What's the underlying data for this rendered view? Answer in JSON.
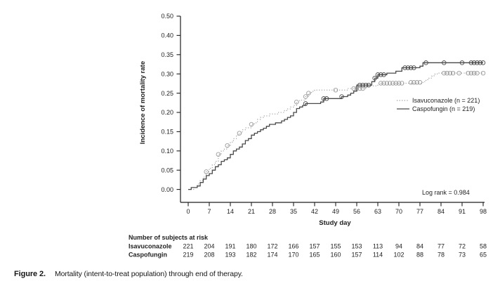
{
  "chart_data": {
    "type": "line",
    "subtype": "step-cumulative-incidence (Kaplan-Meier style)",
    "title": "",
    "xlabel": "Study day",
    "ylabel": "Incidence of mortality rate",
    "x_ticks": [
      0,
      7,
      14,
      21,
      28,
      35,
      42,
      49,
      56,
      63,
      70,
      77,
      84,
      91,
      98
    ],
    "y_tick_labels": [
      "0.00",
      "0.05",
      "0.10",
      "0.15",
      "0.20",
      "0.25",
      "0.30",
      "0.35",
      "0.40",
      "0.50"
    ],
    "xlim": [
      0,
      98
    ],
    "ylim_displayed": [
      0.0,
      0.5
    ],
    "grid": false,
    "legend_position": "right-middle",
    "annotation": "Log rank = 0.984",
    "legend": [
      {
        "label": "Isavuconazole (n = 221)",
        "style": "dotted",
        "color": "#9b9b9b"
      },
      {
        "label": "Caspofungin (n = 219)",
        "style": "solid",
        "color": "#4a4a4a"
      }
    ],
    "series": [
      {
        "name": "Isavuconazole (n = 221)",
        "short_name": "Isavuconazole",
        "n": 221,
        "line_style": "dotted",
        "color": "#9b9b9b",
        "steps": [
          [
            0,
            0
          ],
          [
            2,
            0.005
          ],
          [
            3,
            0.014
          ],
          [
            4,
            0.023
          ],
          [
            5,
            0.032
          ],
          [
            6,
            0.046
          ],
          [
            7,
            0.055
          ],
          [
            8,
            0.064
          ],
          [
            9,
            0.073
          ],
          [
            10,
            0.091
          ],
          [
            11,
            0.1
          ],
          [
            12,
            0.105
          ],
          [
            13,
            0.114
          ],
          [
            14,
            0.123
          ],
          [
            15,
            0.132
          ],
          [
            16,
            0.141
          ],
          [
            17,
            0.146
          ],
          [
            18,
            0.155
          ],
          [
            19,
            0.16
          ],
          [
            21,
            0.169
          ],
          [
            22,
            0.173
          ],
          [
            23,
            0.182
          ],
          [
            24,
            0.187
          ],
          [
            25,
            0.191
          ],
          [
            27,
            0.196
          ],
          [
            30,
            0.2
          ],
          [
            32,
            0.205
          ],
          [
            33,
            0.209
          ],
          [
            34,
            0.214
          ],
          [
            35,
            0.218
          ],
          [
            36,
            0.227
          ],
          [
            37,
            0.232
          ],
          [
            39,
            0.241
          ],
          [
            40,
            0.25
          ],
          [
            41,
            0.255
          ],
          [
            42,
            0.258
          ],
          [
            53,
            0.262
          ],
          [
            59,
            0.266
          ],
          [
            60,
            0.269
          ],
          [
            63,
            0.273
          ],
          [
            64,
            0.276
          ],
          [
            78,
            0.28
          ],
          [
            79,
            0.285
          ],
          [
            80,
            0.289
          ],
          [
            81,
            0.295
          ],
          [
            82,
            0.3
          ],
          [
            83,
            0.302
          ],
          [
            98,
            0.302
          ]
        ],
        "censor_marks": [
          [
            6,
            0.046
          ],
          [
            10,
            0.091
          ],
          [
            13,
            0.114
          ],
          [
            17,
            0.146
          ],
          [
            21,
            0.169
          ],
          [
            36,
            0.227
          ],
          [
            39,
            0.241
          ],
          [
            40,
            0.25
          ],
          [
            49,
            0.258
          ],
          [
            55,
            0.262
          ],
          [
            56,
            0.262
          ],
          [
            57,
            0.262
          ],
          [
            58,
            0.262
          ],
          [
            64,
            0.276
          ],
          [
            65,
            0.276
          ],
          [
            66,
            0.276
          ],
          [
            67,
            0.276
          ],
          [
            68,
            0.276
          ],
          [
            69,
            0.276
          ],
          [
            70,
            0.276
          ],
          [
            71,
            0.276
          ],
          [
            74,
            0.278
          ],
          [
            75,
            0.278
          ],
          [
            76,
            0.278
          ],
          [
            77,
            0.278
          ],
          [
            85,
            0.302
          ],
          [
            86,
            0.302
          ],
          [
            87,
            0.302
          ],
          [
            88,
            0.302
          ],
          [
            90,
            0.302
          ],
          [
            93,
            0.302
          ],
          [
            94,
            0.302
          ],
          [
            95,
            0.302
          ],
          [
            96,
            0.302
          ],
          [
            98,
            0.302
          ]
        ]
      },
      {
        "name": "Caspofungin (n = 219)",
        "short_name": "Caspofungin",
        "n": 219,
        "line_style": "solid",
        "color": "#4a4a4a",
        "steps": [
          [
            0,
            0
          ],
          [
            1,
            0.005
          ],
          [
            3,
            0.009
          ],
          [
            4,
            0.018
          ],
          [
            5,
            0.027
          ],
          [
            6,
            0.036
          ],
          [
            7,
            0.041
          ],
          [
            8,
            0.05
          ],
          [
            9,
            0.059
          ],
          [
            10,
            0.064
          ],
          [
            11,
            0.073
          ],
          [
            12,
            0.077
          ],
          [
            13,
            0.082
          ],
          [
            14,
            0.091
          ],
          [
            15,
            0.1
          ],
          [
            16,
            0.105
          ],
          [
            17,
            0.11
          ],
          [
            18,
            0.118
          ],
          [
            19,
            0.127
          ],
          [
            20,
            0.132
          ],
          [
            21,
            0.141
          ],
          [
            22,
            0.146
          ],
          [
            23,
            0.15
          ],
          [
            24,
            0.155
          ],
          [
            25,
            0.159
          ],
          [
            26,
            0.164
          ],
          [
            27,
            0.169
          ],
          [
            29,
            0.173
          ],
          [
            31,
            0.178
          ],
          [
            32,
            0.182
          ],
          [
            33,
            0.187
          ],
          [
            34,
            0.191
          ],
          [
            35,
            0.2
          ],
          [
            36,
            0.21
          ],
          [
            37,
            0.214
          ],
          [
            38,
            0.218
          ],
          [
            39,
            0.223
          ],
          [
            44,
            0.227
          ],
          [
            45,
            0.236
          ],
          [
            51,
            0.241
          ],
          [
            53,
            0.245
          ],
          [
            54,
            0.25
          ],
          [
            55,
            0.255
          ],
          [
            56,
            0.271
          ],
          [
            61,
            0.28
          ],
          [
            62,
            0.289
          ],
          [
            63,
            0.298
          ],
          [
            66,
            0.302
          ],
          [
            69,
            0.307
          ],
          [
            71,
            0.316
          ],
          [
            77,
            0.32
          ],
          [
            78,
            0.329
          ],
          [
            98,
            0.329
          ]
        ],
        "censor_marks": [
          [
            39,
            0.223
          ],
          [
            45,
            0.236
          ],
          [
            46,
            0.236
          ],
          [
            51,
            0.241
          ],
          [
            57,
            0.271
          ],
          [
            58,
            0.271
          ],
          [
            59,
            0.271
          ],
          [
            60,
            0.271
          ],
          [
            62,
            0.289
          ],
          [
            63,
            0.298
          ],
          [
            64,
            0.298
          ],
          [
            65,
            0.298
          ],
          [
            72,
            0.316
          ],
          [
            73,
            0.316
          ],
          [
            74,
            0.316
          ],
          [
            75,
            0.316
          ],
          [
            79,
            0.329
          ],
          [
            85,
            0.329
          ],
          [
            91,
            0.329
          ],
          [
            94,
            0.329
          ],
          [
            95,
            0.329
          ],
          [
            96,
            0.329
          ],
          [
            97,
            0.329
          ],
          [
            98,
            0.329
          ]
        ]
      }
    ],
    "risk_table": {
      "title": "Number of subjects at risk",
      "days": [
        0,
        7,
        14,
        21,
        28,
        35,
        42,
        49,
        56,
        63,
        70,
        77,
        84,
        91,
        98
      ],
      "rows": [
        {
          "label": "Isavuconazole",
          "values": [
            221,
            204,
            191,
            180,
            172,
            166,
            157,
            155,
            153,
            113,
            94,
            84,
            77,
            72,
            58
          ]
        },
        {
          "label": "Caspofungin",
          "values": [
            219,
            208,
            193,
            182,
            174,
            170,
            165,
            160,
            157,
            114,
            102,
            88,
            78,
            73,
            65
          ]
        }
      ]
    }
  },
  "caption": {
    "label": "Figure 2.",
    "text": "Mortality (intent-to-treat population) through end of therapy."
  }
}
